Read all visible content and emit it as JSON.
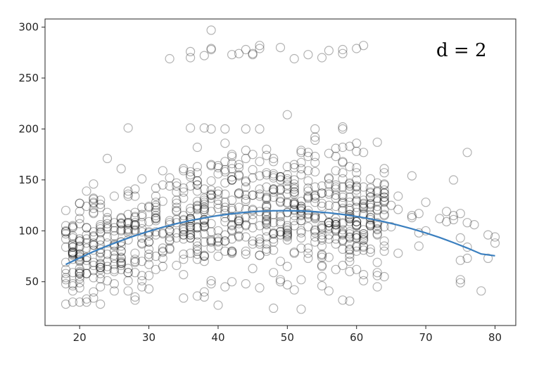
{
  "chart_data": {
    "type": "scatter",
    "xlim": [
      15,
      83
    ],
    "ylim": [
      7,
      308
    ],
    "grid": false,
    "legend": "none",
    "xticks": [
      20,
      30,
      40,
      50,
      60,
      70,
      80
    ],
    "yticks": [
      50,
      100,
      150,
      200,
      250,
      300
    ],
    "annotation": "d = 2",
    "colors": {
      "points": "#000000",
      "fit": "#3a7fbf",
      "axes": "#262626"
    },
    "points_upper": [
      [
        33,
        269
      ],
      [
        36,
        276
      ],
      [
        36,
        270
      ],
      [
        38,
        272
      ],
      [
        39,
        278
      ],
      [
        39,
        279
      ],
      [
        39,
        297
      ],
      [
        42,
        273
      ],
      [
        43,
        274
      ],
      [
        44,
        278
      ],
      [
        45,
        273
      ],
      [
        45,
        274
      ],
      [
        46,
        279
      ],
      [
        46,
        282
      ],
      [
        49,
        280
      ],
      [
        51,
        269
      ],
      [
        53,
        273
      ],
      [
        55,
        270
      ],
      [
        56,
        277
      ],
      [
        58,
        274
      ],
      [
        58,
        278
      ],
      [
        60,
        279
      ],
      [
        61,
        282
      ]
    ],
    "points_outliers_low": [
      [
        18,
        28
      ],
      [
        20,
        30
      ],
      [
        21,
        30
      ],
      [
        23,
        28
      ],
      [
        28,
        35
      ],
      [
        37,
        36
      ],
      [
        39,
        48
      ],
      [
        40,
        27
      ],
      [
        41,
        45
      ],
      [
        42,
        50
      ],
      [
        44,
        48
      ],
      [
        48,
        24
      ],
      [
        50,
        47
      ],
      [
        51,
        42
      ],
      [
        52,
        23
      ],
      [
        55,
        46
      ],
      [
        58,
        32
      ],
      [
        75,
        52
      ],
      [
        76,
        73
      ],
      [
        70,
        100
      ],
      [
        70,
        128
      ],
      [
        73,
        119
      ],
      [
        74,
        150
      ],
      [
        76,
        177
      ],
      [
        80,
        94
      ],
      [
        80,
        88
      ],
      [
        27,
        201
      ],
      [
        36,
        201
      ],
      [
        38,
        201
      ],
      [
        39,
        200
      ],
      [
        41,
        200
      ],
      [
        44,
        200
      ],
      [
        46,
        200
      ],
      [
        50,
        214
      ],
      [
        54,
        200
      ],
      [
        58,
        200
      ],
      [
        58,
        202
      ],
      [
        61,
        177
      ],
      [
        59,
        183
      ]
    ],
    "fit_curve": {
      "x": [
        18,
        20,
        22,
        24,
        26,
        28,
        30,
        32,
        34,
        36,
        38,
        40,
        42,
        44,
        46,
        48,
        50,
        52,
        54,
        56,
        58,
        60,
        62,
        64,
        66,
        68,
        70,
        72,
        74,
        76,
        78,
        80
      ],
      "y": [
        67,
        73.5,
        79.6,
        85.2,
        90.4,
        95.2,
        99.6,
        103.5,
        107,
        110.1,
        112.7,
        115,
        116.8,
        118.2,
        119.2,
        119.7,
        119.8,
        119.5,
        118.8,
        117.7,
        116.1,
        114.1,
        111.7,
        108.9,
        105.6,
        102,
        97.9,
        93.4,
        88.4,
        83.1,
        77.3,
        75.5
      ]
    }
  }
}
